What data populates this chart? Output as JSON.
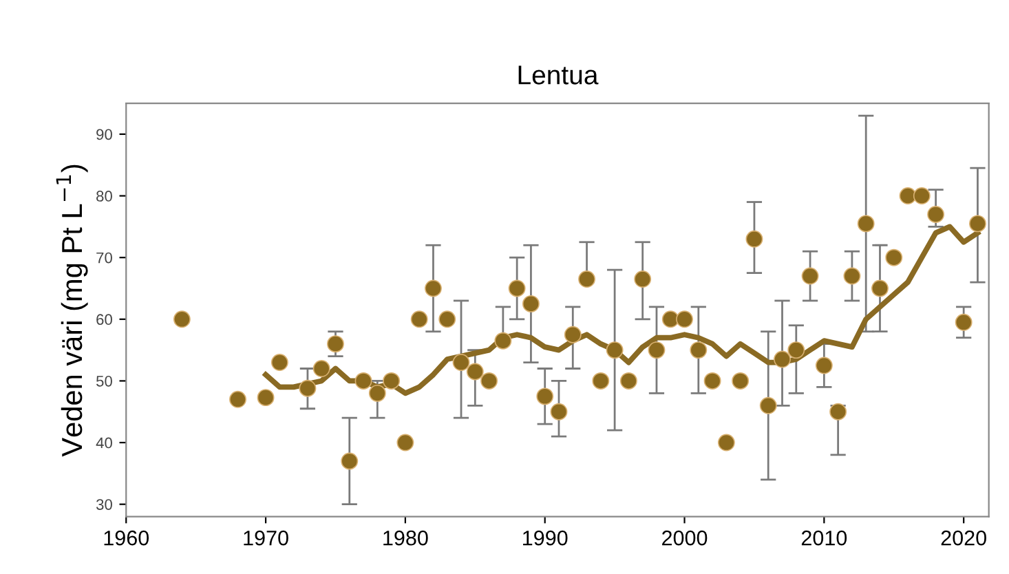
{
  "chart_data": {
    "type": "scatter",
    "title": "Lentua",
    "ylabel": "Veden väri (mg Pt L$^{−1}$)",
    "xlim": [
      1960,
      2021.8
    ],
    "xticks": [
      1960,
      1970,
      1980,
      1990,
      2000,
      2010,
      2020
    ],
    "ylim": [
      28,
      95
    ],
    "yticks": [
      30,
      40,
      50,
      60,
      70,
      80,
      90
    ],
    "grid": false,
    "series": [
      {
        "color": "#8c6a1e",
        "marker": "circle",
        "x": [
          1964,
          1968,
          1970,
          1971,
          1973,
          1974,
          1975,
          1976,
          1977,
          1978,
          1979,
          1980,
          1981,
          1982,
          1983,
          1984,
          1985,
          1986,
          1987,
          1988,
          1989,
          1990,
          1991,
          1992,
          1993,
          1994,
          1995,
          1996,
          1997,
          1998,
          1999,
          2000,
          2001,
          2002,
          2003,
          2004,
          2005,
          2006,
          2007,
          2008,
          2009,
          2010,
          2011,
          2012,
          2013,
          2014,
          2015,
          2016,
          2017,
          2018,
          2020,
          2021
        ],
        "values": [
          60,
          47,
          47.3,
          53,
          48.8,
          52,
          56,
          37,
          50,
          48,
          50,
          40,
          60,
          65,
          60,
          53,
          51.5,
          50,
          56.5,
          65,
          62.5,
          47.5,
          45,
          57.5,
          66.5,
          50,
          55,
          50,
          66.5,
          55,
          60,
          60,
          55,
          50,
          40,
          50,
          73,
          46,
          53.5,
          55,
          67,
          52.5,
          45,
          67,
          75.5,
          65,
          70,
          80,
          80,
          77,
          59.5,
          75.5
        ],
        "errors": [
          null,
          null,
          null,
          null,
          [
            45.5,
            52
          ],
          null,
          [
            54,
            58
          ],
          [
            30,
            44
          ],
          null,
          [
            44,
            50
          ],
          null,
          null,
          null,
          [
            58,
            72
          ],
          null,
          [
            44,
            63
          ],
          [
            46,
            55
          ],
          null,
          [
            56,
            62
          ],
          [
            60,
            70
          ],
          [
            53,
            72
          ],
          [
            43,
            52
          ],
          [
            41,
            50
          ],
          [
            52,
            62
          ],
          [
            66,
            72.5
          ],
          null,
          [
            42,
            68
          ],
          null,
          [
            60,
            72.5
          ],
          [
            48,
            62
          ],
          null,
          null,
          [
            48,
            62
          ],
          null,
          null,
          null,
          [
            67.5,
            79
          ],
          [
            34,
            58
          ],
          [
            46,
            63
          ],
          [
            48,
            59
          ],
          [
            63,
            71
          ],
          [
            49,
            56
          ],
          [
            38,
            46
          ],
          [
            63,
            71
          ],
          [
            58,
            93
          ],
          [
            58,
            72
          ],
          null,
          null,
          null,
          [
            75,
            81
          ],
          [
            57,
            62
          ],
          [
            66,
            84.5
          ]
        ]
      },
      {
        "type": "line",
        "color": "#8a6a23",
        "marker": "none",
        "line_style": "solid",
        "x": [
          1970,
          1971,
          1972,
          1973,
          1974,
          1975,
          1976,
          1977,
          1978,
          1979,
          1980,
          1981,
          1982,
          1983,
          1984,
          1985,
          1986,
          1987,
          1988,
          1989,
          1990,
          1991,
          1992,
          1993,
          1994,
          1995,
          1996,
          1997,
          1998,
          1999,
          2000,
          2001,
          2002,
          2003,
          2004,
          2005,
          2006,
          2007,
          2008,
          2009,
          2010,
          2011,
          2012,
          2013,
          2014,
          2015,
          2016,
          2017,
          2018,
          2019,
          2020,
          2021
        ],
        "values": [
          51,
          49,
          49,
          49.5,
          50,
          52,
          50,
          50,
          49,
          49.5,
          48,
          49,
          51,
          53.5,
          54,
          54.5,
          55,
          57,
          57.5,
          57,
          55.5,
          55,
          56.5,
          57.5,
          56,
          55,
          53,
          55.5,
          57,
          57,
          57.5,
          57,
          56,
          54,
          56,
          54.5,
          53,
          53,
          53.5,
          55,
          56.5,
          56,
          55.5,
          60,
          62,
          64,
          66,
          70,
          74,
          75,
          72.5,
          74
        ]
      }
    ]
  }
}
